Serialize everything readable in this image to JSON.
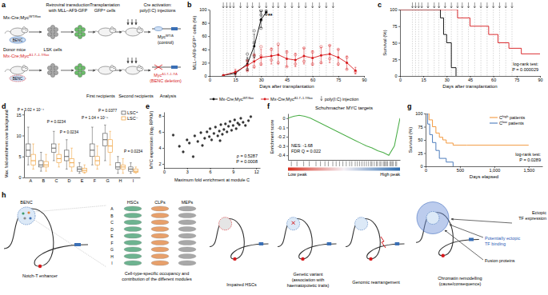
{
  "diagrams": {
    "a": {
      "label": "a",
      "header": [
        [
          "Retroviral transduction",
          "with MLL–AF9-GFP"
        ],
        [
          "Transplantation",
          "GFP⁺ cells"
        ],
        [
          "Cre activation:",
          "poly(I:C) injections"
        ]
      ],
      "genotypes": [
        {
          "name": [
            "Mx-Cre;Myc",
            "WT/flox"
          ],
          "color": "#000000",
          "result": [
            "Myc",
            "WT/Δ"
          ],
          "note": "(control)"
        },
        {
          "name": [
            "Mx-Cre;Myc",
            "Δ1.7–1.7/flox"
          ],
          "color": "#d7191c",
          "result": [
            "Myc",
            "Δ1.7–1.7/Δ"
          ],
          "note": "(BENC deletion)"
        }
      ],
      "element": "BENC",
      "stages": [
        "Donor mice",
        "LSK cells",
        "First recipients",
        "Second recipients",
        "Analysis"
      ]
    },
    "h": {
      "label": "h",
      "element": "BENC",
      "enhancer": "Notch-T enhancer",
      "modules": [
        "A",
        "B",
        "C",
        "D",
        "E",
        "F",
        "G",
        "H",
        "I"
      ],
      "cell_types": [
        "HSCs",
        "CLPs",
        "MEPs"
      ],
      "caption": [
        "Cell-type-specific occupancy and",
        "contribution of the different modules"
      ],
      "scenarios": [
        {
          "title": [
            "Impaired HSCs"
          ]
        },
        {
          "title": [
            "Genetic variant",
            "(association with",
            "haematopoietic traits)"
          ]
        },
        {
          "title": [
            "Genomic rearrangement"
          ]
        },
        {
          "title": [
            "Chromatin remodelling",
            "(cause/consequence)"
          ],
          "notes": [
            [
              "Ectopic",
              "TF expression"
            ],
            [
              "Potentially ectopic",
              "TF binding"
            ],
            [
              "Fusion proteins"
            ]
          ]
        }
      ]
    }
  },
  "chart_data": [
    {
      "label": "b",
      "type": "line",
      "xlabel": "Days after transplantation",
      "ylabel": "MLL–AF9-GFP⁺ cells (%)",
      "xlim": [
        0,
        90
      ],
      "xticks": [
        0,
        15,
        30,
        45,
        60,
        75,
        90
      ],
      "ylim": [
        0,
        100
      ],
      "yticks": [
        0,
        20,
        40,
        60,
        80,
        100
      ],
      "series": [
        {
          "name": [
            "Mx-Cre;Myc",
            "WT/flox"
          ],
          "color": "#000000",
          "type": "line",
          "marker": "circle",
          "x": [
            8,
            15,
            22,
            26,
            30,
            33
          ],
          "values": [
            1,
            4,
            18,
            45,
            85,
            96
          ],
          "errors": [
            1,
            3,
            10,
            18,
            12,
            4
          ]
        },
        {
          "name": [
            "Mx-Cre;Myc",
            "Δ1.7–1.7/flox"
          ],
          "color": "#d7191c",
          "type": "line",
          "marker": "circle",
          "x": [
            8,
            15,
            22,
            26,
            30,
            36,
            40,
            45,
            50,
            55,
            60,
            65,
            70,
            75,
            80,
            85
          ],
          "values": [
            1,
            6,
            16,
            22,
            28,
            30,
            32,
            26,
            24,
            30,
            27,
            31,
            33,
            28,
            20,
            8
          ],
          "errors": [
            1,
            4,
            8,
            10,
            12,
            12,
            14,
            12,
            10,
            12,
            11,
            12,
            13,
            12,
            10,
            5
          ]
        },
        {
          "color": "#000000",
          "type": "scatter",
          "marker": "circle-open",
          "x": [
            22,
            22,
            22,
            26,
            26,
            26,
            30,
            30,
            30,
            30,
            30,
            33,
            33
          ],
          "values": [
            10,
            24,
            33,
            30,
            50,
            68,
            72,
            84,
            92,
            98,
            99,
            93,
            98
          ]
        },
        {
          "color": "#d7191c",
          "type": "scatter",
          "marker": "circle-open",
          "x": [
            22,
            22,
            26,
            26,
            30,
            30,
            30,
            36,
            36,
            40,
            40,
            45,
            45,
            50,
            50,
            55,
            55,
            60,
            60,
            65,
            65,
            70,
            70,
            75,
            75,
            80,
            80,
            85
          ],
          "values": [
            8,
            22,
            14,
            32,
            18,
            30,
            44,
            24,
            40,
            20,
            48,
            14,
            36,
            18,
            32,
            22,
            42,
            18,
            36,
            20,
            44,
            26,
            46,
            18,
            40,
            10,
            28,
            6
          ]
        }
      ],
      "injections": {
        "name": "poly(I:C) injection",
        "x": [
          8,
          10,
          12,
          14,
          18,
          22,
          25,
          29,
          33,
          37,
          40,
          44,
          48,
          52,
          56,
          60,
          64,
          68,
          72
        ]
      },
      "annotations": [
        {
          "x": 34,
          "y": 88,
          "text": "**"
        }
      ],
      "legend": "bottom"
    },
    {
      "label": "c",
      "type": "step",
      "xlabel": "Days after transplantation",
      "ylabel": "Survival (%)",
      "xlim": [
        0,
        90
      ],
      "xticks": [
        0,
        15,
        30,
        45,
        60,
        75,
        90
      ],
      "ylim": [
        0,
        100
      ],
      "yticks": [
        0,
        25,
        50,
        75,
        100
      ],
      "series": [
        {
          "color": "#000000",
          "x": [
            0,
            26,
            28,
            30,
            33,
            36
          ],
          "values": [
            100,
            87.5,
            62.5,
            50,
            12.5,
            0
          ]
        },
        {
          "color": "#d7191c",
          "x": [
            0,
            37,
            45,
            57,
            63,
            70,
            78,
            90
          ],
          "values": [
            100,
            87.5,
            75,
            62.5,
            50,
            41.7,
            33.3,
            33.3
          ]
        }
      ],
      "injections": {
        "x": [
          8,
          10,
          12,
          14,
          18,
          22,
          25,
          29,
          33,
          37,
          40,
          44,
          48,
          52,
          56,
          60,
          64,
          68,
          72
        ]
      },
      "annotations": [
        {
          "text": [
            "log-rank test:",
            "P = 0.000029"
          ]
        }
      ]
    },
    {
      "label": "d",
      "type": "box",
      "ylabel": "Max. fold enrichment over background",
      "categories": [
        "A",
        "B",
        "C",
        "D",
        "E",
        "F",
        "G",
        "H",
        "I"
      ],
      "ylim": [
        0,
        16
      ],
      "yticks": [
        0,
        5,
        10,
        15
      ],
      "series": [
        {
          "name": "LSC⁺",
          "color": "#4d4d4d",
          "min": [
            3,
            1.5,
            4,
            2,
            1,
            3,
            4,
            1,
            1
          ],
          "q1": [
            5,
            2.5,
            6,
            4,
            1.5,
            5,
            7.5,
            2,
            1.5
          ],
          "median": [
            6.5,
            3,
            7,
            5,
            2,
            6.5,
            9,
            2.5,
            2
          ],
          "q3": [
            8,
            4,
            8,
            6.5,
            2.5,
            8,
            10.5,
            3.5,
            2.5
          ],
          "max": [
            12,
            6,
            11,
            9,
            3.5,
            12,
            12.5,
            5,
            3.5
          ]
        },
        {
          "name": "LSC⁻",
          "color": "#ee9a2e",
          "min": [
            2,
            1.5,
            2.5,
            1.5,
            1,
            2,
            3,
            1,
            1
          ],
          "q1": [
            3,
            2.5,
            3.5,
            2.5,
            1.3,
            3,
            6,
            2,
            1.2
          ],
          "median": [
            4,
            3,
            4.5,
            3.5,
            1.7,
            4,
            7.5,
            2.5,
            1.5
          ],
          "q3": [
            5.5,
            3.8,
            5.5,
            4.5,
            2.2,
            5,
            9,
            3,
            2
          ],
          "max": [
            8,
            5.5,
            8,
            7,
            3,
            7.5,
            11,
            4.5,
            2.5
          ]
        }
      ],
      "annotations": [
        {
          "category": "A",
          "y": 15.9,
          "text": "P = 3.02 × 10⁻⁴"
        },
        {
          "category": "C",
          "y": 13,
          "text": "P = 0.0234"
        },
        {
          "category": "D",
          "y": 10.5,
          "text": "P = 0.0234"
        },
        {
          "category": "F",
          "y": 14,
          "text": "P = 1.04 × 10⁻⁵"
        },
        {
          "category": "G",
          "y": 15.6,
          "text": "P = 0.0377"
        },
        {
          "category": "I",
          "y": 6,
          "text": "P = 0.0234"
        }
      ],
      "legend": "top-right"
    },
    {
      "label": "e",
      "type": "scatter",
      "xlabel": "Maximum fold enrichment at module C",
      "ylabel": "MYC expression (log₂ RPKM)",
      "xlim": [
        0,
        12.5
      ],
      "xticks": [
        0,
        3,
        6,
        9,
        12
      ],
      "ylim": [
        1.5,
        8.5
      ],
      "yticks": [
        2,
        4,
        6,
        8
      ],
      "color": "#333333",
      "marker": "circle",
      "x": [
        1.2,
        2.0,
        2.5,
        3.0,
        3.3,
        3.8,
        4.0,
        4.4,
        4.8,
        5.0,
        5.3,
        5.6,
        5.9,
        6.0,
        6.2,
        6.5,
        6.7,
        7.0,
        7.2,
        7.4,
        7.6,
        7.8,
        8.0,
        8.2,
        8.4,
        8.6,
        8.8,
        9.0,
        9.2,
        9.4,
        9.6,
        9.8,
        10.0,
        10.3,
        10.6,
        11.0,
        11.3,
        7.3
      ],
      "values": [
        5.6,
        4.2,
        3.5,
        5.0,
        4.6,
        2.9,
        5.5,
        4.8,
        5.9,
        4.3,
        5.2,
        6.0,
        5.4,
        6.4,
        5.0,
        5.8,
        6.6,
        5.5,
        6.1,
        6.9,
        5.7,
        6.3,
        7.0,
        6.0,
        6.7,
        7.3,
        6.2,
        6.8,
        7.5,
        6.4,
        7.1,
        6.9,
        7.7,
        7.2,
        6.8,
        7.4,
        7.9,
        4.9
      ],
      "annotations": [
        {
          "text": "ρ = 0.5287"
        },
        {
          "text": "P = 0.0008"
        }
      ]
    },
    {
      "label": "f",
      "type": "line",
      "title": "Schuhmacher MYC targets",
      "ylabel": "Enrichment score",
      "xlim": [
        0,
        100
      ],
      "ylim": [
        -0.45,
        0.05
      ],
      "yticks": [
        0,
        -0.1,
        -0.2,
        -0.3,
        -0.4
      ],
      "tick_labels": "y",
      "color": "#4daf4a",
      "x": [
        0,
        5,
        10,
        15,
        20,
        25,
        30,
        35,
        40,
        45,
        50,
        55,
        60,
        65,
        70,
        75,
        80,
        85,
        90,
        95,
        100
      ],
      "values": [
        0,
        0.02,
        0.03,
        0.02,
        0,
        -0.03,
        -0.06,
        -0.09,
        -0.12,
        -0.15,
        -0.18,
        -0.21,
        -0.24,
        -0.27,
        -0.3,
        -0.32,
        -0.35,
        -0.37,
        -0.4,
        -0.3,
        0
      ],
      "hits": [
        3,
        8,
        14,
        19,
        25,
        29,
        33,
        36,
        40,
        43,
        46,
        49,
        52,
        55,
        57,
        60,
        62,
        64,
        66,
        68,
        70,
        72,
        74,
        75,
        77,
        79,
        80,
        82,
        83,
        85,
        86,
        87,
        88,
        89,
        91,
        92,
        93,
        94,
        96,
        97
      ],
      "scale_labels": [
        "Low peak",
        "High peak"
      ],
      "annotations": [
        {
          "text": "NES: -1.68"
        },
        {
          "text": "FDR Q = 0.022"
        }
      ]
    },
    {
      "label": "g",
      "type": "step",
      "xlabel": "Days elapsed",
      "ylabel": "Survival (%)",
      "xlim": [
        0,
        1700
      ],
      "xticks": [
        0,
        500,
        {
          "value": 1000,
          "label": "1,000"
        },
        {
          "value": 1500,
          "label": "1,500"
        }
      ],
      "ylim": [
        0,
        100
      ],
      "yticks": [
        0,
        25,
        50,
        75,
        100
      ],
      "series": [
        {
          "name": [
            "C",
            "high",
            " patients"
          ],
          "color": "#f28e2b",
          "x": [
            0,
            50,
            100,
            150,
            200,
            250,
            300,
            400,
            600,
            1500
          ],
          "values": [
            100,
            88,
            75,
            63,
            55,
            50,
            44,
            40,
            40,
            40
          ]
        },
        {
          "name": [
            "C",
            "low",
            " patients"
          ],
          "color": "#3b6fb6",
          "x": [
            0,
            30,
            60,
            100,
            150,
            200,
            300,
            400
          ],
          "values": [
            100,
            80,
            60,
            45,
            30,
            15,
            8,
            0
          ]
        }
      ],
      "annotations": [
        {
          "text": [
            "log-rank test:",
            "P = 0.0289"
          ]
        }
      ],
      "legend": "top-right"
    }
  ]
}
